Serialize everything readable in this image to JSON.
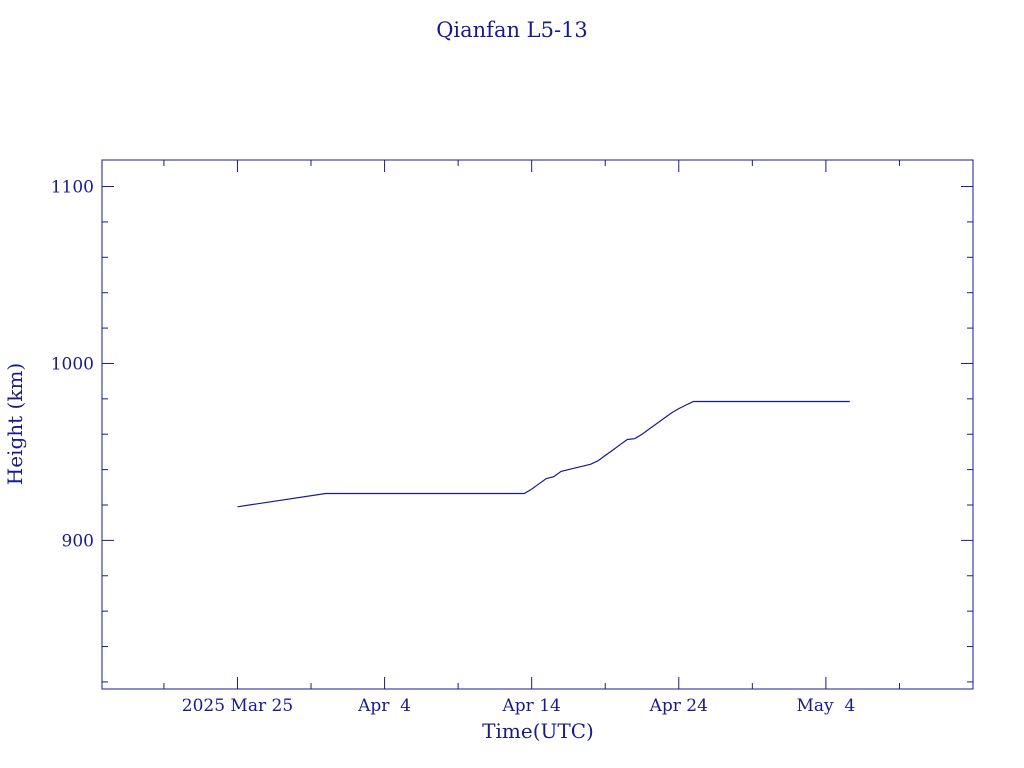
{
  "chart_data": {
    "type": "line",
    "title": "Qianfan L5-13",
    "xlabel": "Time(UTC)",
    "ylabel": "Height (km)",
    "x_tick_labels": [
      "2025 Mar 25",
      "Apr  4",
      "Apr 14",
      "Apr 24",
      "May  4"
    ],
    "y_tick_labels": [
      "900",
      "1000",
      "1100"
    ],
    "xlim": [
      "2025-03-15T19:00",
      "2025-05-14T00:00"
    ],
    "ylim": [
      816,
      1115
    ],
    "grid": false,
    "series": [
      {
        "name": "",
        "color": "#1a1a8c",
        "points": [
          [
            "2025-03-25T00:00",
            919
          ],
          [
            "2025-03-31T00:00",
            926.5
          ],
          [
            "2025-04-13T12:00",
            926.5
          ],
          [
            "2025-04-14T00:00",
            929
          ],
          [
            "2025-04-14T12:00",
            932
          ],
          [
            "2025-04-15T00:00",
            935
          ],
          [
            "2025-04-15T12:00",
            936
          ],
          [
            "2025-04-16T00:00",
            939
          ],
          [
            "2025-04-17T00:00",
            941
          ],
          [
            "2025-04-17T12:00",
            942
          ],
          [
            "2025-04-18T00:00",
            943
          ],
          [
            "2025-04-18T12:00",
            945
          ],
          [
            "2025-04-19T00:00",
            948
          ],
          [
            "2025-04-19T12:00",
            951
          ],
          [
            "2025-04-20T00:00",
            954
          ],
          [
            "2025-04-20T12:00",
            957
          ],
          [
            "2025-04-21T00:00",
            957.5
          ],
          [
            "2025-04-21T12:00",
            960
          ],
          [
            "2025-04-22T00:00",
            963
          ],
          [
            "2025-04-22T12:00",
            966
          ],
          [
            "2025-04-23T00:00",
            969
          ],
          [
            "2025-04-23T12:00",
            972
          ],
          [
            "2025-04-24T00:00",
            974.5
          ],
          [
            "2025-04-24T12:00",
            976.5
          ],
          [
            "2025-04-25T00:00",
            978.5
          ],
          [
            "2025-05-05T15:00",
            978.5
          ]
        ]
      }
    ]
  }
}
